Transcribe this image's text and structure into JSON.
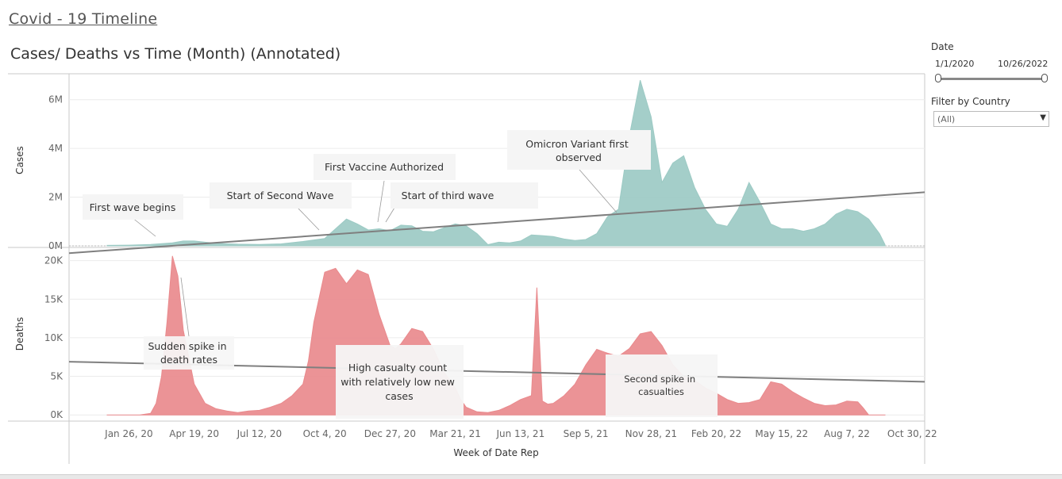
{
  "dashboard_title": "Covid - 19 Timeline",
  "chart_title": "Cases/ Deaths vs Time (Month) (Annotated)",
  "filters": {
    "date_label": "Date",
    "date_start": "1/1/2020",
    "date_end": "10/26/2022",
    "country_label": "Filter by Country",
    "country_value": "(All)"
  },
  "colors": {
    "cases": "#9ccac4",
    "deaths": "#e98a8d",
    "trend": "#7f7f7f"
  },
  "chart_data": [
    {
      "type": "area",
      "ylabel": "Cases",
      "xlabel": "Week of Date Rep",
      "ylim": [
        0,
        7000000
      ],
      "y_ticks": [
        {
          "v": 0,
          "label": "0M"
        },
        {
          "v": 2000000,
          "label": "2M"
        },
        {
          "v": 4000000,
          "label": "4M"
        },
        {
          "v": 6000000,
          "label": "6M"
        }
      ],
      "x": [
        0,
        4,
        8,
        12,
        14,
        16,
        18,
        20,
        24,
        28,
        32,
        36,
        40,
        44,
        46,
        48,
        50,
        52,
        54,
        56,
        58,
        60,
        62,
        64,
        66,
        68,
        70,
        72,
        74,
        76,
        78,
        80,
        82,
        84,
        86,
        88,
        90,
        92,
        94,
        96,
        98,
        100,
        102,
        104,
        106,
        108,
        110,
        112,
        114,
        116,
        118,
        120,
        122,
        124,
        126,
        128,
        130,
        132,
        134,
        136,
        138,
        140,
        142,
        143
      ],
      "values": [
        20000,
        30000,
        60000,
        120000,
        200000,
        200000,
        150000,
        100000,
        70000,
        60000,
        80000,
        180000,
        300000,
        1100000,
        900000,
        650000,
        700000,
        620000,
        850000,
        820000,
        600000,
        580000,
        750000,
        900000,
        820000,
        500000,
        50000,
        150000,
        120000,
        200000,
        450000,
        420000,
        380000,
        280000,
        220000,
        260000,
        500000,
        1200000,
        1500000,
        4500000,
        6800000,
        5300000,
        2600000,
        3400000,
        3700000,
        2400000,
        1500000,
        900000,
        800000,
        1500000,
        2600000,
        1800000,
        900000,
        700000,
        700000,
        600000,
        700000,
        900000,
        1300000,
        1500000,
        1400000,
        1100000,
        500000,
        50000
      ],
      "trend": [
        -300000,
        2200000
      ],
      "annotations": [
        "First wave begins",
        "Start of Second Wave",
        "First Vaccine Authorized",
        "Start of third wave",
        "Omicron Variant first observed"
      ]
    },
    {
      "type": "area",
      "ylabel": "Deaths",
      "xlabel": "Week of Date Rep",
      "ylim": [
        -800,
        21500
      ],
      "y_ticks": [
        {
          "v": 0,
          "label": "0K"
        },
        {
          "v": 5000,
          "label": "5K"
        },
        {
          "v": 10000,
          "label": "10K"
        },
        {
          "v": 15000,
          "label": "15K"
        },
        {
          "v": 20000,
          "label": "20K"
        }
      ],
      "x_ticks": [
        "Jan 26, 20",
        "Apr 19, 20",
        "Jul 12, 20",
        "Oct 4, 20",
        "Dec 27, 20",
        "Mar 21, 21",
        "Jun 13, 21",
        "Sep 5, 21",
        "Nov 28, 21",
        "Feb 20, 22",
        "May 15, 22",
        "Aug 7, 22",
        "Oct 30, 22"
      ],
      "x": [
        0,
        4,
        6,
        8,
        9,
        10,
        11,
        12,
        13,
        14,
        16,
        18,
        20,
        22,
        24,
        26,
        28,
        30,
        32,
        34,
        36,
        37,
        38,
        40,
        42,
        44,
        46,
        48,
        50,
        52,
        53,
        54,
        56,
        58,
        60,
        62,
        64,
        65,
        66,
        68,
        70,
        72,
        74,
        76,
        78,
        79,
        80,
        81,
        82,
        84,
        86,
        88,
        90,
        92,
        94,
        96,
        98,
        100,
        102,
        104,
        106,
        108,
        110,
        112,
        114,
        116,
        118,
        120,
        122,
        124,
        126,
        128,
        130,
        132,
        134,
        136,
        138,
        139,
        140,
        142,
        143
      ],
      "values": [
        0,
        0,
        0,
        200,
        1500,
        5000,
        12000,
        20600,
        18000,
        11000,
        4000,
        1500,
        800,
        500,
        300,
        500,
        600,
        1000,
        1500,
        2500,
        4000,
        7000,
        12000,
        18500,
        19000,
        17000,
        18800,
        18200,
        13000,
        9000,
        8600,
        9200,
        11200,
        10800,
        8500,
        5500,
        3500,
        2000,
        1000,
        400,
        300,
        600,
        1200,
        2000,
        2500,
        16500,
        1800,
        1400,
        1500,
        2500,
        4000,
        6500,
        8500,
        8000,
        7600,
        8600,
        10500,
        10800,
        9000,
        6500,
        5000,
        4500,
        3500,
        2800,
        2000,
        1500,
        1600,
        2000,
        4300,
        4000,
        3000,
        2200,
        1500,
        1200,
        1300,
        1800,
        1700,
        900,
        0,
        0,
        0
      ],
      "trend": [
        6900,
        4300
      ],
      "annotations": [
        "Sudden spike in death rates",
        "High casualty count with relatively low new cases",
        "Second spike in casualties"
      ]
    }
  ]
}
